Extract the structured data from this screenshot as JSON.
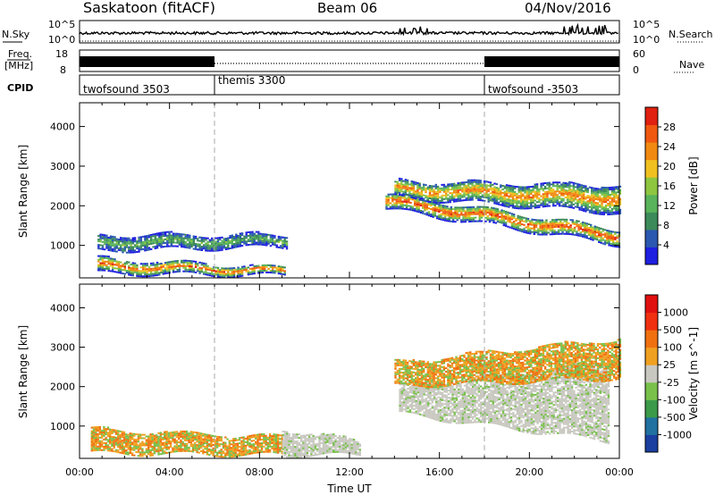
{
  "header": {
    "radar": "Saskatoon (fitACF)",
    "beam": "Beam 06",
    "date": "04/Nov/2016"
  },
  "status_panels": {
    "nsky": {
      "label": "N.Sky",
      "tick_top": "10^5",
      "tick_bottom": "10^0",
      "right_tick_top": "10^5",
      "right_tick_bottom": "10^0"
    },
    "nsearch": {
      "label": "N.Search"
    },
    "freq": {
      "label_line1": "Freq.",
      "label_line2": "[MHz]",
      "tick_top": "18",
      "tick_bottom": "8"
    },
    "nave": {
      "label": "Nave",
      "tick_top": "60",
      "tick_bottom": "0"
    },
    "cpid": {
      "label": "CPID",
      "segments": [
        {
          "name": "twofsound 3503",
          "start_hour": 0
        },
        {
          "name": "themis 3300",
          "start_hour": 6
        },
        {
          "name": "twofsound -3503",
          "start_hour": 18
        }
      ]
    }
  },
  "chart_data": [
    {
      "type": "heatmap",
      "title": "",
      "xlabel": "",
      "ylabel": "Slant Range [km]",
      "xlim": [
        0,
        24
      ],
      "ylim": [
        180,
        4600
      ],
      "yticks": [
        1000,
        2000,
        3000,
        4000
      ],
      "colorbar": {
        "label": "Power [dB]",
        "min": 0,
        "max": 31,
        "ticks": [
          "4",
          "8",
          "12",
          "16",
          "20",
          "24",
          "28"
        ]
      },
      "echo_bands": [
        {
          "name": "near range ionospheric/ground",
          "x": [
            0.8,
            9.1
          ],
          "range_start": [
            280,
            650
          ],
          "range_end": [
            220,
            420
          ],
          "peak_power": 28
        },
        {
          "name": "morning band",
          "x": [
            0.8,
            9.2
          ],
          "range_start": [
            850,
            1250
          ],
          "range_end": [
            950,
            1250
          ],
          "peak_power": 12
        },
        {
          "name": "evening band",
          "x": [
            13.6,
            24
          ],
          "range_start": [
            1900,
            2300
          ],
          "range_end": [
            1000,
            1400
          ],
          "peak_power": 30
        },
        {
          "name": "far range band",
          "x": [
            14.0,
            24
          ],
          "range_start": [
            2200,
            2600
          ],
          "range_end": [
            1800,
            2500
          ],
          "peak_power": 26
        }
      ]
    },
    {
      "type": "heatmap",
      "title": "",
      "xlabel": "Time UT",
      "ylabel": "Slant Range [km]",
      "xlim": [
        0,
        24
      ],
      "ylim": [
        180,
        4600
      ],
      "xticks": [
        "00:00",
        "04:00",
        "08:00",
        "12:00",
        "16:00",
        "20:00",
        "00:00"
      ],
      "yticks": [
        1000,
        2000,
        3000,
        4000
      ],
      "colorbar": {
        "label": "Velocity [m s^-1]",
        "ticks": [
          "1000",
          "500",
          "100",
          "25",
          "-25",
          "-100",
          "-500",
          "-1000"
        ]
      },
      "echo_bands": [
        {
          "name": "morning flow",
          "x": [
            0.5,
            9.0
          ],
          "range_start": [
            300,
            900
          ],
          "range_end": [
            250,
            700
          ],
          "velocity": -100
        },
        {
          "name": "ground scatter",
          "x": [
            9.0,
            12.5
          ],
          "range_start": [
            250,
            900
          ],
          "range_end": [
            250,
            600
          ],
          "velocity": 0
        },
        {
          "name": "evening ground scatter",
          "x": [
            14.2,
            23.5
          ],
          "range_start": [
            1300,
            2000
          ],
          "range_end": [
            600,
            2600
          ],
          "velocity": 0
        },
        {
          "name": "evening far range",
          "x": [
            14.0,
            24
          ],
          "range_start": [
            2000,
            2600
          ],
          "range_end": [
            2200,
            3200
          ],
          "velocity": -150
        }
      ]
    }
  ],
  "colors": {
    "power": [
      "#1f1fe0",
      "#2a57b0",
      "#3c8a5a",
      "#58b35a",
      "#8ec63f",
      "#f0c020",
      "#f08a10",
      "#f05810",
      "#e02010"
    ],
    "velocity": [
      "#1a3fa0",
      "#2070a0",
      "#3a9a4a",
      "#78c04a",
      "#c8c8c0",
      "#f0a020",
      "#f07010",
      "#f03010",
      "#e01010"
    ]
  }
}
